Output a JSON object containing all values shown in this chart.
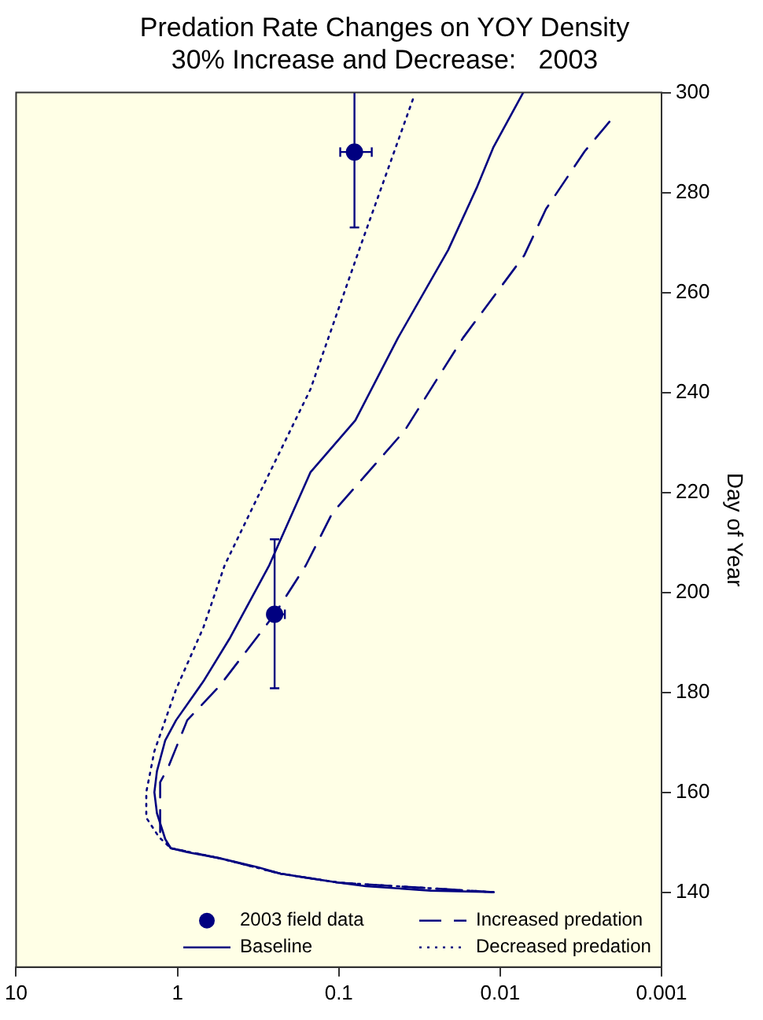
{
  "chart_data": {
    "type": "line",
    "title": "Predation Rate Changes on YOY Density",
    "subtitle": "30% Increase and Decrease:   2003",
    "ylabel": "Day of Year",
    "log": "x",
    "grid": false,
    "legend": "bottom right",
    "ylim": [
      125,
      300
    ],
    "yticks": [
      140,
      160,
      180,
      200,
      220,
      240,
      260,
      280,
      300
    ],
    "xlim": [
      10,
      0.001
    ],
    "xticks": [
      10,
      1,
      0.1,
      0.01,
      0.001
    ],
    "series": [
      {
        "name": "2003 field data",
        "type": "scatter",
        "marker": "circle",
        "color": "#000080",
        "values": [
          195.6,
          288.1
        ],
        "x": [
          0.25,
          0.08
        ],
        "errors": [
          [
            180.8,
            210.6
          ],
          [
            273,
            300
          ]
        ],
        "xerrors": [
          [
            0.216,
            0.273
          ],
          [
            0.0625,
            0.098
          ]
        ]
      },
      {
        "name": "Baseline",
        "line_style": "solid",
        "color": "#000080",
        "values": [
          140,
          140.3,
          141.2,
          141.9,
          142.9,
          143.7,
          145,
          146.8,
          148,
          148.8,
          150.6,
          155.8,
          160,
          164.2,
          170.4,
          174.4,
          182.2,
          191,
          205.4,
          224,
          234.4,
          250.9,
          268.5,
          280.9,
          289.1,
          300
        ],
        "x": [
          0.011,
          0.027,
          0.068,
          0.1,
          0.16,
          0.23,
          0.32,
          0.55,
          0.87,
          1.1,
          1.19,
          1.34,
          1.39,
          1.34,
          1.19,
          1.02,
          0.69,
          0.47,
          0.27,
          0.15,
          0.079,
          0.043,
          0.021,
          0.014,
          0.011,
          0.0072
        ]
      },
      {
        "name": "Increased predation",
        "line_style": "dashed",
        "color": "#000080",
        "values": [
          140,
          141.9,
          143.7,
          146.8,
          148.8,
          151.8,
          162,
          165,
          174.4,
          181.2,
          195.6,
          205.4,
          215.8,
          232.4,
          250.9,
          267.4,
          276.7,
          288.2,
          295
        ],
        "x": [
          0.011,
          0.1,
          0.23,
          0.55,
          1.1,
          1.28,
          1.28,
          1.14,
          0.87,
          0.55,
          0.25,
          0.16,
          0.11,
          0.039,
          0.017,
          0.0071,
          0.0052,
          0.003,
          0.002
        ]
      },
      {
        "name": "Decreased predation",
        "line_style": "dotted",
        "color": "#000080",
        "values": [
          140,
          141.9,
          143.7,
          146.8,
          148.8,
          151,
          154.9,
          160,
          168.2,
          180.6,
          193,
          205.4,
          218.9,
          240.6,
          269.5,
          299.5
        ],
        "x": [
          0.011,
          0.1,
          0.23,
          0.55,
          1.1,
          1.3,
          1.56,
          1.56,
          1.39,
          1.02,
          0.69,
          0.51,
          0.32,
          0.15,
          0.073,
          0.034
        ]
      }
    ]
  }
}
